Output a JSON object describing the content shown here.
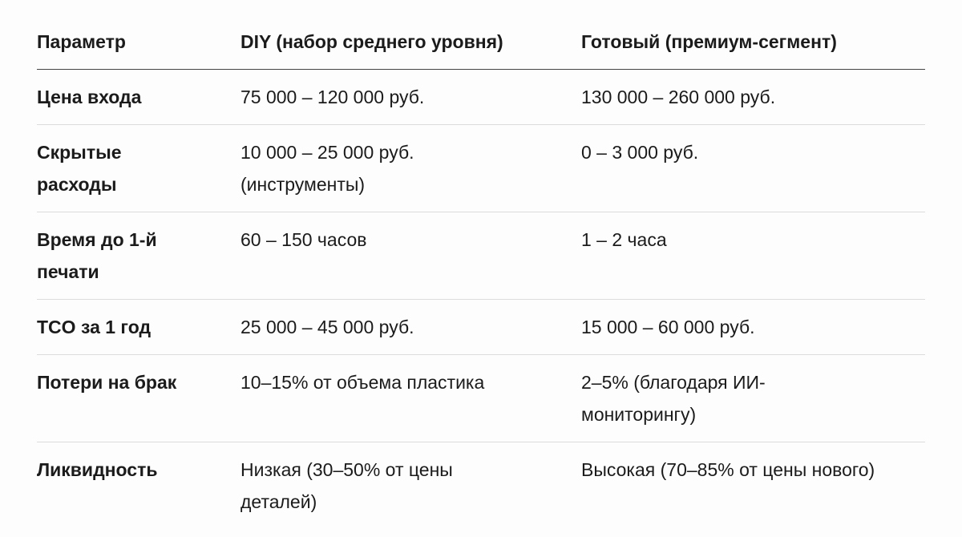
{
  "table": {
    "header": [
      "Параметр",
      "DIY (набор среднего уровня)",
      "Готовый (премиум-сегмент)"
    ],
    "rows": [
      [
        "Цена входа",
        "75 000 – 120 000 руб.",
        "130 000 – 260 000 руб."
      ],
      [
        "Скрытые расходы",
        "10 000 – 25 000 руб. (инструменты)",
        "0 – 3 000 руб."
      ],
      [
        "Время до 1-й печати",
        "60 – 150 часов",
        "1 – 2 часа"
      ],
      [
        "TCO за 1 год",
        "25 000 – 45 000 руб.",
        "15 000 – 60 000 руб."
      ],
      [
        "Потери на брак",
        "10–15% от объема пластика",
        "2–5% (благодаря ИИ-мониторингу)"
      ],
      [
        "Ликвидность",
        "Низкая (30–50% от цены деталей)",
        "Высокая (70–85% от цены нового)"
      ]
    ]
  }
}
